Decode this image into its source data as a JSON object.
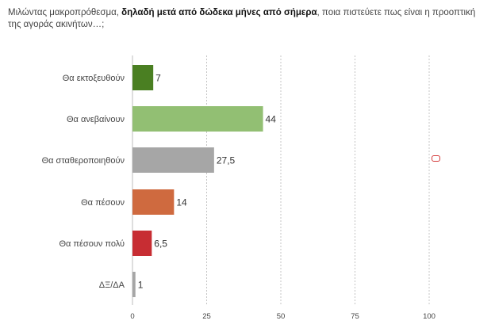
{
  "question": {
    "part1": "Μιλώντας μακροπρόθεσμα, ",
    "bold": "δηλαδή μετά από δώδεκα μήνες από σήμερα",
    "part2": ", ποια πιστεύετε πως είναι η προοπτική της αγοράς ακινήτων…;"
  },
  "chart_data": {
    "type": "bar",
    "orientation": "horizontal",
    "categories": [
      "Θα εκτοξευθούν",
      "Θα ανεβαίνουν",
      "Θα σταθεροποιηθούν",
      "Θα πέσουν",
      "Θα πέσουν πολύ",
      "ΔΞ/ΔΑ"
    ],
    "values": [
      7,
      44,
      27.5,
      14,
      6.5,
      1
    ],
    "value_labels": [
      "7",
      "44",
      "27,5",
      "14",
      "6,5",
      "1"
    ],
    "colors": [
      "#4a7f22",
      "#92bf73",
      "#a6a6a6",
      "#cf6a3f",
      "#c72d33",
      "#a6a6a6"
    ],
    "xlim": [
      0,
      100
    ],
    "ticks": [
      0,
      25,
      50,
      75,
      100
    ],
    "tick_labels": [
      "0",
      "25",
      "50",
      "75",
      "100"
    ],
    "grid": "vertical dashed",
    "legend": "none"
  }
}
